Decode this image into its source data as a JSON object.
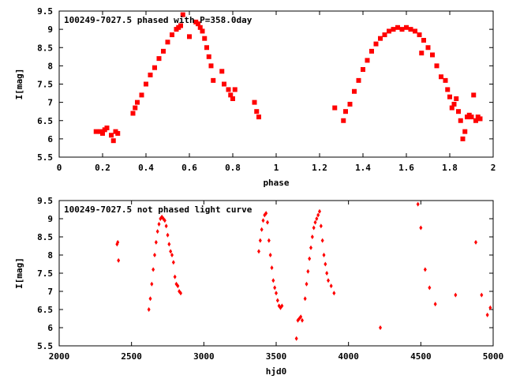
{
  "colors": {
    "points": "#ff0000",
    "axes": "#000000",
    "background": "#ffffff"
  },
  "chart_data": [
    {
      "type": "scatter",
      "title": "100249-7027.5 phased with P=358.0day",
      "xlabel": "phase",
      "ylabel": "I[mag]",
      "xlim": [
        0,
        2
      ],
      "ylim": [
        9.5,
        5.5
      ],
      "y_inverted": true,
      "grid": false,
      "x_ticks": [
        "0",
        "0.2",
        "0.4",
        "0.6",
        "0.8",
        "1",
        "1.2",
        "1.4",
        "1.6",
        "1.8",
        "2"
      ],
      "y_ticks": [
        "5.5",
        "6",
        "6.5",
        "7",
        "7.5",
        "8",
        "8.5",
        "9",
        "9.5"
      ],
      "series": [
        {
          "marker": "square",
          "x": [
            0.17,
            0.19,
            0.2,
            0.21,
            0.22,
            0.24,
            0.25,
            0.26,
            0.27,
            0.34,
            0.35,
            0.36,
            0.38,
            0.4,
            0.42,
            0.44,
            0.46,
            0.48,
            0.5,
            0.52,
            0.54,
            0.55,
            0.56,
            0.57,
            0.6,
            0.63,
            0.64,
            0.65,
            0.66,
            0.67,
            0.68,
            0.69,
            0.7,
            0.71,
            0.75,
            0.76,
            0.78,
            0.79,
            0.8,
            0.81,
            0.9,
            0.91,
            0.92,
            1.27,
            1.31,
            1.32,
            1.34,
            1.36,
            1.38,
            1.4,
            1.42,
            1.44,
            1.46,
            1.48,
            1.5,
            1.52,
            1.54,
            1.56,
            1.58,
            1.6,
            1.62,
            1.64,
            1.66,
            1.67,
            1.68,
            1.7,
            1.72,
            1.74,
            1.76,
            1.78,
            1.79,
            1.8,
            1.81,
            1.82,
            1.83,
            1.84,
            1.85,
            1.86,
            1.87,
            1.88,
            1.89,
            1.9,
            1.91,
            1.92,
            1.93,
            1.94
          ],
          "y": [
            6.2,
            6.2,
            6.15,
            6.25,
            6.3,
            6.1,
            5.95,
            6.2,
            6.15,
            6.7,
            6.85,
            7.0,
            7.2,
            7.5,
            7.75,
            7.95,
            8.2,
            8.4,
            8.65,
            8.85,
            9.0,
            9.05,
            9.1,
            9.4,
            8.8,
            9.2,
            9.15,
            9.05,
            8.95,
            8.75,
            8.5,
            8.25,
            8.0,
            7.6,
            7.85,
            7.5,
            7.35,
            7.2,
            7.1,
            7.35,
            7.0,
            6.75,
            6.6,
            6.85,
            6.5,
            6.75,
            6.95,
            7.3,
            7.6,
            7.9,
            8.15,
            8.4,
            8.6,
            8.75,
            8.85,
            8.95,
            9.0,
            9.05,
            9.0,
            9.05,
            9.0,
            8.95,
            8.85,
            8.35,
            8.7,
            8.5,
            8.3,
            8.0,
            7.7,
            7.6,
            7.35,
            7.15,
            6.85,
            6.95,
            7.1,
            6.75,
            6.5,
            6.0,
            6.2,
            6.6,
            6.65,
            6.6,
            7.2,
            6.5,
            6.6,
            6.55
          ]
        }
      ]
    },
    {
      "type": "scatter",
      "title": "100249-7027.5 not phased light curve",
      "xlabel": "hjd0",
      "ylabel": "I[mag]",
      "xlim": [
        2000,
        5000
      ],
      "ylim": [
        9.5,
        5.5
      ],
      "y_inverted": true,
      "grid": false,
      "x_ticks": [
        "2000",
        "2500",
        "3000",
        "3500",
        "4000",
        "4500",
        "5000"
      ],
      "y_ticks": [
        "5.5",
        "6",
        "6.5",
        "7",
        "7.5",
        "8",
        "8.5",
        "9",
        "9.5"
      ],
      "series": [
        {
          "marker": "diamond",
          "x": [
            2400,
            2405,
            2410,
            2620,
            2630,
            2640,
            2650,
            2660,
            2670,
            2680,
            2690,
            2700,
            2710,
            2720,
            2730,
            2740,
            2750,
            2760,
            2770,
            2780,
            2790,
            2800,
            2810,
            2820,
            2830,
            2840,
            3380,
            3390,
            3400,
            3410,
            3420,
            3430,
            3440,
            3450,
            3460,
            3470,
            3480,
            3490,
            3500,
            3510,
            3520,
            3530,
            3540,
            3640,
            3650,
            3660,
            3670,
            3680,
            3700,
            3710,
            3720,
            3730,
            3740,
            3750,
            3760,
            3770,
            3780,
            3790,
            3800,
            3810,
            3820,
            3830,
            3840,
            3850,
            3860,
            3880,
            3900,
            4220,
            4480,
            4500,
            4530,
            4560,
            4600,
            4740,
            4880,
            4920,
            4960,
            4980
          ],
          "y": [
            8.3,
            8.35,
            7.85,
            6.5,
            6.8,
            7.2,
            7.6,
            8.0,
            8.35,
            8.65,
            8.85,
            9.0,
            9.05,
            9.0,
            8.95,
            8.8,
            8.55,
            8.3,
            8.1,
            8.0,
            7.8,
            7.4,
            7.2,
            7.15,
            7.0,
            6.95,
            8.1,
            8.4,
            8.7,
            8.95,
            9.1,
            9.15,
            8.9,
            8.4,
            8.0,
            7.65,
            7.3,
            7.1,
            6.95,
            6.75,
            6.6,
            6.55,
            6.6,
            5.7,
            6.2,
            6.25,
            6.3,
            6.2,
            6.8,
            7.2,
            7.55,
            7.9,
            8.2,
            8.5,
            8.75,
            8.9,
            9.0,
            9.1,
            9.2,
            8.8,
            8.4,
            8.0,
            7.75,
            7.5,
            7.3,
            7.15,
            6.95,
            6.0,
            9.4,
            8.75,
            7.6,
            7.1,
            6.65,
            6.9,
            8.35,
            6.9,
            6.35,
            6.55
          ]
        }
      ]
    }
  ]
}
